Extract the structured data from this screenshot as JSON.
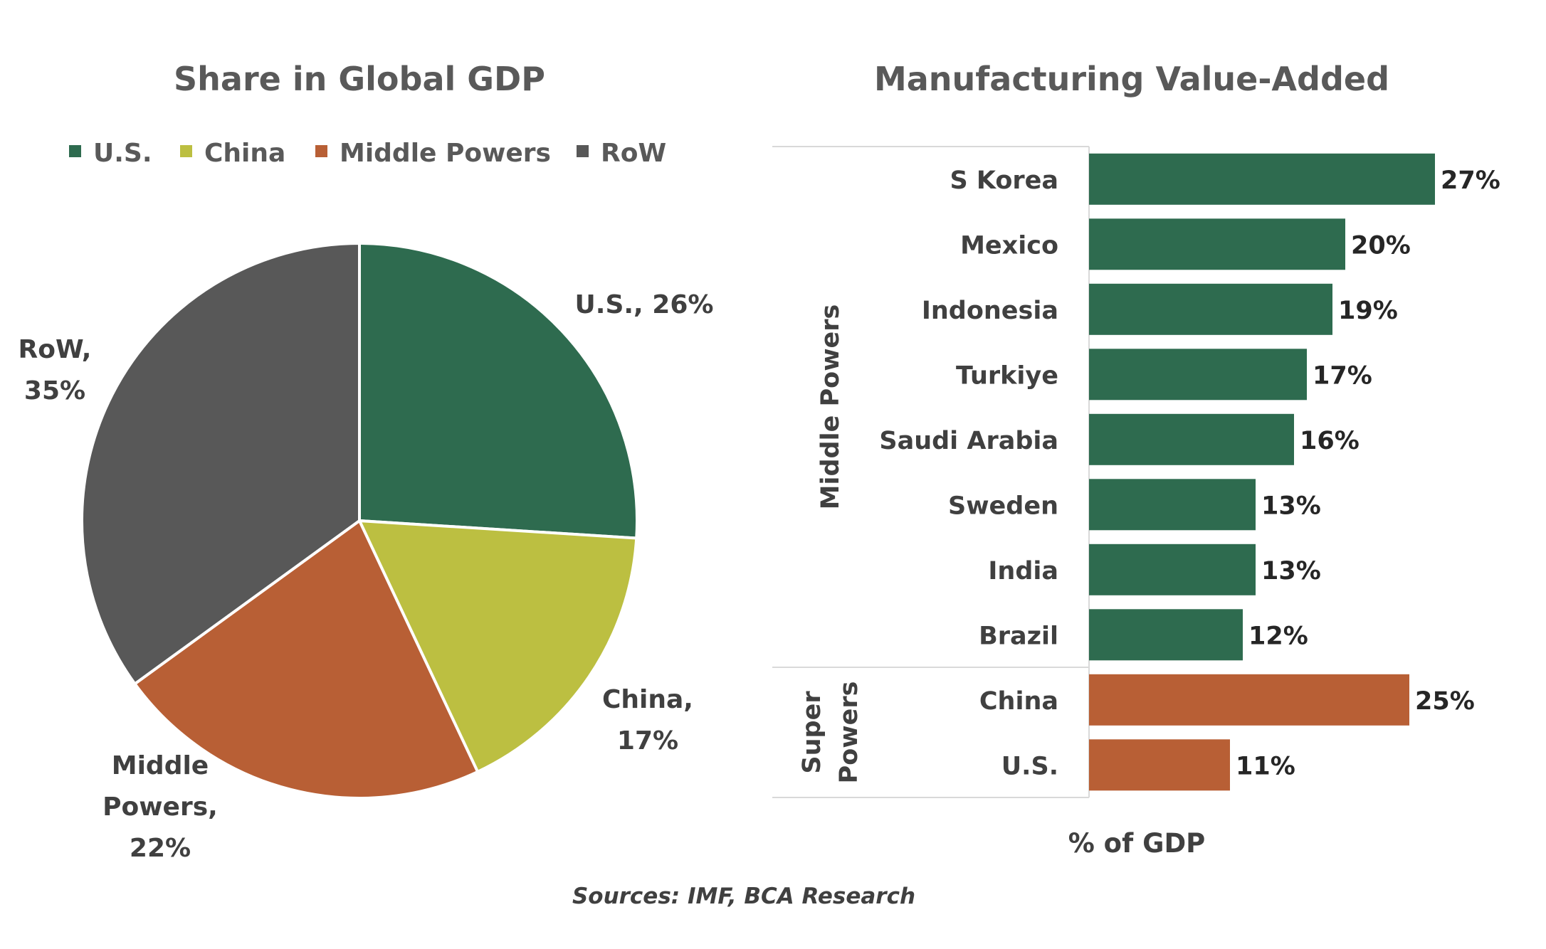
{
  "source": "Sources: IMF, BCA Research",
  "colors": {
    "us": "#2e6b4f",
    "china": "#bcbf41",
    "middle_powers": "#b85f35",
    "row": "#585858",
    "super_powers_bars": "#b85f35",
    "middle_powers_bars": "#2e6b4f"
  },
  "chart_data": [
    {
      "type": "pie",
      "title": "Share in Global GDP",
      "legend_position": "top",
      "start_angle_deg": 0,
      "direction": "clockwise",
      "slices": [
        {
          "legend": "U.S.",
          "label_lines": [
            "U.S., 26%"
          ],
          "value": 26,
          "color": "#2e6b4f"
        },
        {
          "legend": "China",
          "label_lines": [
            "China,",
            "17%"
          ],
          "value": 17,
          "color": "#bcbf41"
        },
        {
          "legend": "Middle Powers",
          "label_lines": [
            "Middle",
            "Powers,",
            "22%"
          ],
          "value": 22,
          "color": "#b85f35"
        },
        {
          "legend": "RoW",
          "label_lines": [
            "RoW,",
            "35%"
          ],
          "value": 35,
          "color": "#585858"
        }
      ]
    },
    {
      "type": "bar",
      "orientation": "horizontal",
      "title": "Manufacturing Value-Added",
      "xlabel": "% of GDP",
      "xlim": [
        0,
        27
      ],
      "grid": false,
      "groups": [
        {
          "label": "Middle Powers",
          "label_lines": [
            "Middle Powers"
          ],
          "color": "#2e6b4f",
          "bars": [
            {
              "category": "S Korea",
              "value": 27,
              "label": "27%"
            },
            {
              "category": "Mexico",
              "value": 20,
              "label": "20%"
            },
            {
              "category": "Indonesia",
              "value": 19,
              "label": "19%"
            },
            {
              "category": "Turkiye",
              "value": 17,
              "label": "17%"
            },
            {
              "category": "Saudi Arabia",
              "value": 16,
              "label": "16%"
            },
            {
              "category": "Sweden",
              "value": 13,
              "label": "13%"
            },
            {
              "category": "India",
              "value": 13,
              "label": "13%"
            },
            {
              "category": "Brazil",
              "value": 12,
              "label": "12%"
            }
          ]
        },
        {
          "label": "Super Powers",
          "label_lines": [
            "Super",
            "Powers"
          ],
          "color": "#b85f35",
          "bars": [
            {
              "category": "China",
              "value": 25,
              "label": "25%"
            },
            {
              "category": "U.S.",
              "value": 11,
              "label": "11%"
            }
          ]
        }
      ]
    }
  ]
}
